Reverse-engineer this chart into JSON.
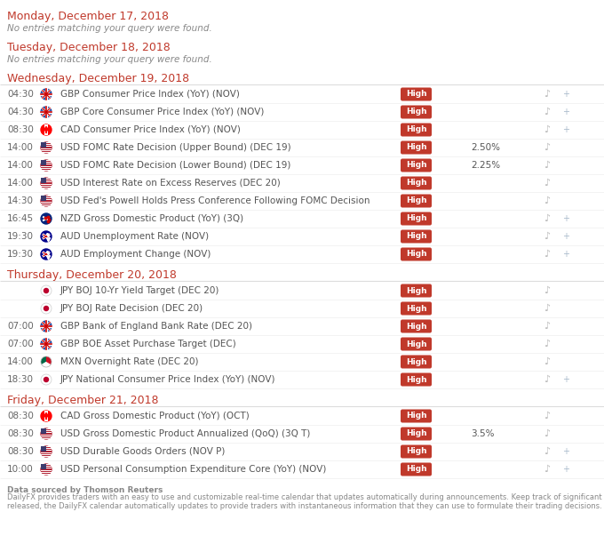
{
  "background_color": "#ffffff",
  "high_button_color": "#c0392b",
  "day_header_color": "#c0392b",
  "days": [
    {
      "day": "Monday, December 17, 2018",
      "no_entries": true,
      "entries": []
    },
    {
      "day": "Tuesday, December 18, 2018",
      "no_entries": true,
      "entries": []
    },
    {
      "day": "Wednesday, December 19, 2018",
      "no_entries": false,
      "entries": [
        {
          "time": "04:30",
          "flag": "gbp",
          "event": "GBP Consumer Price Index (YoY) (NOV)",
          "actual": "",
          "bell": true,
          "plus": true
        },
        {
          "time": "04:30",
          "flag": "gbp",
          "event": "GBP Core Consumer Price Index (YoY) (NOV)",
          "actual": "",
          "bell": true,
          "plus": true
        },
        {
          "time": "08:30",
          "flag": "cad",
          "event": "CAD Consumer Price Index (YoY) (NOV)",
          "actual": "",
          "bell": true,
          "plus": true
        },
        {
          "time": "14:00",
          "flag": "usd",
          "event": "USD FOMC Rate Decision (Upper Bound) (DEC 19)",
          "actual": "2.50%",
          "bell": true,
          "plus": false
        },
        {
          "time": "14:00",
          "flag": "usd",
          "event": "USD FOMC Rate Decision (Lower Bound) (DEC 19)",
          "actual": "2.25%",
          "bell": true,
          "plus": false
        },
        {
          "time": "14:00",
          "flag": "usd",
          "event": "USD Interest Rate on Excess Reserves (DEC 20)",
          "actual": "",
          "bell": true,
          "plus": false
        },
        {
          "time": "14:30",
          "flag": "usd",
          "event": "USD Fed's Powell Holds Press Conference Following FOMC Decision",
          "actual": "",
          "bell": true,
          "plus": false
        },
        {
          "time": "16:45",
          "flag": "nzd",
          "event": "NZD Gross Domestic Product (YoY) (3Q)",
          "actual": "",
          "bell": true,
          "plus": true
        },
        {
          "time": "19:30",
          "flag": "aud",
          "event": "AUD Unemployment Rate (NOV)",
          "actual": "",
          "bell": true,
          "plus": true
        },
        {
          "time": "19:30",
          "flag": "aud",
          "event": "AUD Employment Change (NOV)",
          "actual": "",
          "bell": true,
          "plus": true
        }
      ]
    },
    {
      "day": "Thursday, December 20, 2018",
      "no_entries": false,
      "entries": [
        {
          "time": "",
          "flag": "jpy",
          "event": "JPY BOJ 10-Yr Yield Target (DEC 20)",
          "actual": "",
          "bell": true,
          "plus": false
        },
        {
          "time": "",
          "flag": "jpy",
          "event": "JPY BOJ Rate Decision (DEC 20)",
          "actual": "",
          "bell": true,
          "plus": false
        },
        {
          "time": "07:00",
          "flag": "gbp",
          "event": "GBP Bank of England Bank Rate (DEC 20)",
          "actual": "",
          "bell": true,
          "plus": false
        },
        {
          "time": "07:00",
          "flag": "gbp",
          "event": "GBP BOE Asset Purchase Target (DEC)",
          "actual": "",
          "bell": true,
          "plus": false
        },
        {
          "time": "14:00",
          "flag": "mxn",
          "event": "MXN Overnight Rate (DEC 20)",
          "actual": "",
          "bell": true,
          "plus": false
        },
        {
          "time": "18:30",
          "flag": "jpy",
          "event": "JPY National Consumer Price Index (YoY) (NOV)",
          "actual": "",
          "bell": true,
          "plus": true
        }
      ]
    },
    {
      "day": "Friday, December 21, 2018",
      "no_entries": false,
      "entries": [
        {
          "time": "08:30",
          "flag": "cad",
          "event": "CAD Gross Domestic Product (YoY) (OCT)",
          "actual": "",
          "bell": true,
          "plus": false
        },
        {
          "time": "08:30",
          "flag": "usd",
          "event": "USD Gross Domestic Product Annualized (QoQ) (3Q T)",
          "actual": "3.5%",
          "bell": true,
          "plus": false
        },
        {
          "time": "08:30",
          "flag": "usd",
          "event": "USD Durable Goods Orders (NOV P)",
          "actual": "",
          "bell": true,
          "plus": true
        },
        {
          "time": "10:00",
          "flag": "usd",
          "event": "USD Personal Consumption Expenditure Core (YoY) (NOV)",
          "actual": "",
          "bell": true,
          "plus": true
        }
      ]
    }
  ],
  "footer_lines": [
    "Data sourced by Thomson Reuters",
    "DailyFX provides traders with an easy to use and customizable real-time calendar that updates automatically during announcements. Keep track of significant events that traders care about. As soon as event data is",
    "released, the DailyFX calendar automatically updates to provide traders with instantaneous information that they can use to formulate their trading decisions."
  ]
}
